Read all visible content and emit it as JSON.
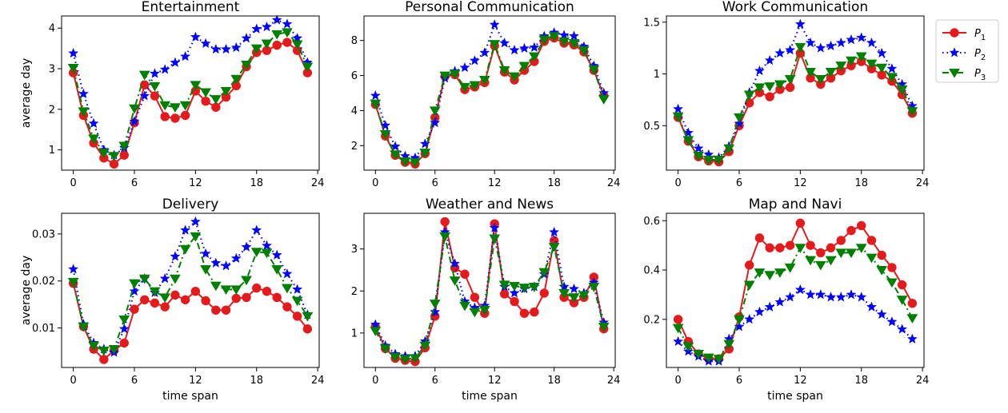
{
  "chart_data": [
    {
      "type": "line",
      "title": "Entertainment",
      "xlabel": "",
      "ylabel": "average day",
      "xlim": [
        -1.15,
        24.15
      ],
      "ylim": [
        0.5,
        4.3
      ],
      "xticks": [
        0,
        6,
        12,
        18,
        24
      ],
      "yticks": [
        1,
        2,
        3,
        4
      ],
      "x": [
        0,
        1,
        2,
        3,
        4,
        5,
        6,
        7,
        8,
        9,
        10,
        11,
        12,
        13,
        14,
        15,
        16,
        17,
        18,
        19,
        20,
        21,
        22,
        23
      ],
      "series": [
        {
          "name": "P1",
          "values": [
            2.9,
            1.85,
            1.17,
            0.8,
            0.65,
            0.87,
            1.67,
            2.6,
            2.33,
            1.82,
            1.78,
            1.85,
            2.45,
            2.2,
            2.05,
            2.3,
            2.58,
            3.05,
            3.4,
            3.45,
            3.58,
            3.65,
            3.45,
            2.9
          ]
        },
        {
          "name": "P2",
          "values": [
            3.38,
            2.38,
            1.65,
            1.0,
            0.87,
            1.05,
            1.7,
            2.33,
            2.88,
            2.98,
            3.15,
            3.3,
            3.78,
            3.62,
            3.48,
            3.48,
            3.52,
            3.75,
            3.98,
            4.03,
            4.2,
            4.1,
            3.75,
            3.15
          ]
        },
        {
          "name": "P3",
          "values": [
            3.02,
            1.95,
            1.28,
            0.93,
            0.85,
            1.1,
            2.02,
            2.85,
            2.57,
            2.1,
            2.05,
            2.1,
            2.6,
            2.42,
            2.25,
            2.45,
            2.75,
            3.1,
            3.5,
            3.62,
            3.85,
            3.9,
            3.6,
            3.05
          ]
        }
      ]
    },
    {
      "type": "line",
      "title": "Personal Communication",
      "xlabel": "",
      "ylabel": "",
      "xlim": [
        -1.15,
        24.15
      ],
      "ylim": [
        0.6,
        9.4
      ],
      "xticks": [
        0,
        6,
        12,
        18,
        24
      ],
      "yticks": [
        2,
        4,
        6,
        8
      ],
      "x": [
        0,
        1,
        2,
        3,
        4,
        5,
        6,
        7,
        8,
        9,
        10,
        11,
        12,
        13,
        14,
        15,
        16,
        17,
        18,
        19,
        20,
        21,
        22,
        23
      ],
      "series": [
        {
          "name": "P1",
          "values": [
            4.35,
            2.55,
            1.45,
            1.05,
            0.95,
            1.55,
            3.6,
            5.95,
            6.05,
            5.2,
            5.35,
            5.6,
            7.7,
            6.2,
            5.75,
            6.3,
            6.8,
            7.95,
            8.15,
            7.85,
            7.75,
            7.35,
            6.3,
            4.85
          ]
        },
        {
          "name": "P2",
          "values": [
            4.85,
            3.15,
            1.95,
            1.4,
            1.3,
            2.1,
            3.3,
            5.85,
            6.25,
            6.45,
            6.85,
            7.3,
            8.9,
            7.85,
            7.45,
            7.55,
            7.6,
            8.25,
            8.45,
            8.3,
            8.25,
            7.65,
            6.55,
            5.0
          ]
        },
        {
          "name": "P3",
          "values": [
            4.4,
            2.65,
            1.5,
            1.1,
            1.05,
            1.6,
            4.0,
            6.0,
            6.1,
            5.35,
            5.45,
            5.75,
            7.8,
            6.3,
            5.95,
            6.55,
            7.1,
            8.05,
            8.25,
            7.95,
            7.85,
            7.45,
            6.35,
            4.65
          ]
        }
      ]
    },
    {
      "type": "line",
      "title": "Work Communication",
      "xlabel": "",
      "ylabel": "",
      "xlim": [
        -1.15,
        24.15
      ],
      "ylim": [
        0.07,
        1.56
      ],
      "xticks": [
        0,
        6,
        12,
        18,
        24
      ],
      "yticks": [
        0.5,
        1.0,
        1.5
      ],
      "x": [
        0,
        1,
        2,
        3,
        4,
        5,
        6,
        7,
        8,
        9,
        10,
        11,
        12,
        13,
        14,
        15,
        16,
        17,
        18,
        19,
        20,
        21,
        22,
        23
      ],
      "series": [
        {
          "name": "P1",
          "values": [
            0.58,
            0.35,
            0.2,
            0.16,
            0.15,
            0.25,
            0.5,
            0.72,
            0.82,
            0.78,
            0.85,
            0.87,
            1.2,
            0.96,
            0.9,
            0.96,
            1.03,
            1.08,
            1.12,
            1.05,
            0.99,
            0.93,
            0.8,
            0.62
          ]
        },
        {
          "name": "P2",
          "values": [
            0.66,
            0.43,
            0.28,
            0.22,
            0.19,
            0.3,
            0.52,
            0.82,
            1.03,
            1.13,
            1.2,
            1.23,
            1.48,
            1.3,
            1.25,
            1.27,
            1.3,
            1.33,
            1.35,
            1.3,
            1.2,
            1.05,
            0.9,
            0.69
          ]
        },
        {
          "name": "P3",
          "values": [
            0.59,
            0.36,
            0.21,
            0.17,
            0.17,
            0.28,
            0.58,
            0.8,
            0.87,
            0.88,
            0.9,
            0.95,
            1.26,
            1.02,
            0.95,
            1.02,
            1.08,
            1.13,
            1.17,
            1.1,
            1.06,
            0.97,
            0.85,
            0.64
          ]
        }
      ]
    },
    {
      "type": "line",
      "title": "Delivery",
      "xlabel": "time span",
      "ylabel": "average day",
      "xlim": [
        -1.15,
        24.15
      ],
      "ylim": [
        0.0016,
        0.0344
      ],
      "xticks": [
        0,
        6,
        12,
        18,
        24
      ],
      "yticks": [
        0.01,
        0.02,
        0.03
      ],
      "yticklabels": [
        "0.01",
        "0.02",
        "0.03"
      ],
      "x": [
        0,
        1,
        2,
        3,
        4,
        5,
        6,
        7,
        8,
        9,
        10,
        11,
        12,
        13,
        14,
        15,
        16,
        17,
        18,
        19,
        20,
        21,
        22,
        23
      ],
      "series": [
        {
          "name": "P1",
          "values": [
            0.0195,
            0.0103,
            0.0055,
            0.0033,
            0.0052,
            0.0068,
            0.014,
            0.016,
            0.0153,
            0.0145,
            0.017,
            0.016,
            0.0178,
            0.0158,
            0.0138,
            0.0138,
            0.0163,
            0.0165,
            0.0185,
            0.0178,
            0.0165,
            0.0145,
            0.0125,
            0.0098
          ]
        },
        {
          "name": "P2",
          "values": [
            0.0225,
            0.0108,
            0.0068,
            0.0055,
            0.0048,
            0.0098,
            0.0178,
            0.0205,
            0.0175,
            0.0205,
            0.0252,
            0.0308,
            0.0326,
            0.0258,
            0.0238,
            0.0232,
            0.0248,
            0.0272,
            0.0308,
            0.0275,
            0.0255,
            0.0215,
            0.0182,
            0.0128
          ]
        },
        {
          "name": "P3",
          "values": [
            0.0198,
            0.0103,
            0.0062,
            0.0052,
            0.0055,
            0.0118,
            0.0195,
            0.0205,
            0.0178,
            0.0165,
            0.0205,
            0.0268,
            0.0295,
            0.0225,
            0.019,
            0.0182,
            0.0182,
            0.0202,
            0.0262,
            0.026,
            0.0225,
            0.0185,
            0.0158,
            0.0125
          ]
        }
      ]
    },
    {
      "type": "line",
      "title": "Weather and News",
      "xlabel": "time span",
      "ylabel": "",
      "xlim": [
        -1.15,
        24.15
      ],
      "ylim": [
        0.18,
        3.85
      ],
      "xticks": [
        0,
        6,
        12,
        18,
        24
      ],
      "yticks": [
        1,
        2,
        3
      ],
      "x": [
        0,
        1,
        2,
        3,
        4,
        5,
        6,
        7,
        8,
        9,
        10,
        11,
        12,
        13,
        14,
        15,
        16,
        17,
        18,
        19,
        20,
        21,
        22,
        23
      ],
      "series": [
        {
          "name": "P1",
          "values": [
            1.15,
            0.63,
            0.4,
            0.35,
            0.32,
            0.65,
            1.4,
            3.65,
            2.55,
            2.4,
            1.85,
            1.47,
            3.6,
            1.93,
            1.75,
            1.47,
            1.5,
            1.95,
            3.2,
            1.85,
            1.72,
            1.85,
            2.33,
            1.1
          ]
        },
        {
          "name": "P2",
          "values": [
            1.2,
            0.7,
            0.5,
            0.45,
            0.45,
            0.8,
            1.5,
            3.4,
            2.65,
            1.75,
            1.6,
            1.65,
            3.5,
            2.1,
            1.95,
            2.05,
            2.1,
            2.4,
            3.4,
            2.1,
            2.05,
            1.95,
            2.2,
            1.25
          ]
        },
        {
          "name": "P3",
          "values": [
            1.05,
            0.63,
            0.43,
            0.38,
            0.4,
            0.7,
            1.7,
            3.3,
            2.25,
            1.65,
            1.5,
            1.55,
            3.25,
            2.15,
            2.12,
            2.08,
            2.1,
            2.45,
            3.05,
            1.95,
            1.85,
            1.9,
            2.1,
            1.15
          ]
        }
      ]
    },
    {
      "type": "line",
      "title": "Map and Navi",
      "xlabel": "time span",
      "ylabel": "",
      "xlim": [
        -1.15,
        24.15
      ],
      "ylim": [
        0.005,
        0.63
      ],
      "xticks": [
        0,
        6,
        12,
        18,
        24
      ],
      "yticks": [
        0.2,
        0.4,
        0.6
      ],
      "x": [
        0,
        1,
        2,
        3,
        4,
        5,
        6,
        7,
        8,
        9,
        10,
        11,
        12,
        13,
        14,
        15,
        16,
        17,
        18,
        19,
        20,
        21,
        22,
        23
      ],
      "series": [
        {
          "name": "P1",
          "values": [
            0.2,
            0.11,
            0.06,
            0.04,
            0.04,
            0.08,
            0.21,
            0.42,
            0.53,
            0.49,
            0.49,
            0.5,
            0.59,
            0.5,
            0.47,
            0.49,
            0.52,
            0.56,
            0.58,
            0.52,
            0.46,
            0.41,
            0.34,
            0.265
          ]
        },
        {
          "name": "P2",
          "values": [
            0.11,
            0.07,
            0.05,
            0.03,
            0.03,
            0.12,
            0.17,
            0.2,
            0.23,
            0.25,
            0.27,
            0.29,
            0.32,
            0.3,
            0.3,
            0.29,
            0.29,
            0.3,
            0.29,
            0.25,
            0.22,
            0.19,
            0.16,
            0.12
          ]
        },
        {
          "name": "P3",
          "values": [
            0.165,
            0.09,
            0.06,
            0.045,
            0.04,
            0.1,
            0.2,
            0.34,
            0.39,
            0.38,
            0.39,
            0.41,
            0.49,
            0.44,
            0.42,
            0.44,
            0.47,
            0.47,
            0.49,
            0.45,
            0.4,
            0.35,
            0.28,
            0.205
          ]
        }
      ]
    }
  ],
  "legend": {
    "placement": "top-right",
    "entries": [
      {
        "base": "P",
        "sub": "1",
        "color": "#e41a1c",
        "marker": "circle",
        "linestyle": "solid"
      },
      {
        "base": "P",
        "sub": "2",
        "color": "#0000ff",
        "marker": "star",
        "linestyle": "dotted"
      },
      {
        "base": "P",
        "sub": "3",
        "color": "#008000",
        "marker": "triangle-down",
        "linestyle": "dashdot"
      }
    ]
  },
  "series_styles": {
    "P1": {
      "color": "#e41a1c",
      "marker": "circle",
      "dash": "solid"
    },
    "P2": {
      "color": "#0000ff",
      "marker": "star",
      "dash": "dotted"
    },
    "P3": {
      "color": "#008000",
      "marker": "triangle-down",
      "dash": "dashdot"
    }
  }
}
